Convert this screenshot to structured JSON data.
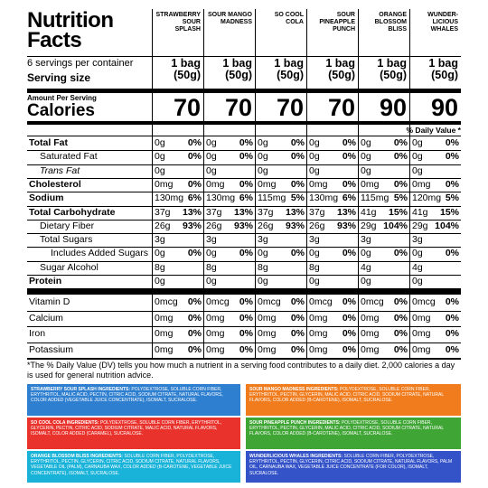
{
  "header": {
    "title": "Nutrition Facts",
    "products": [
      "STRAWBERRY SOUR SPLASH",
      "SOUR MANGO MADNESS",
      "SO COOL COLA",
      "SOUR PINEAPPLE PUNCH",
      "ORANGE BLOSSOM BLISS",
      "WUNDER-LICIOUS WHALES"
    ]
  },
  "servings": {
    "per_container": "6 servings per container",
    "size_label": "Serving size",
    "sizes": [
      "1 bag (50g)",
      "1 bag (50g)",
      "1 bag (50g)",
      "1 bag (50g)",
      "1 bag (50g)",
      "1 bag (50g)"
    ]
  },
  "calories": {
    "amount_label": "Amount Per Serving",
    "label": "Calories",
    "values": [
      "70",
      "70",
      "70",
      "70",
      "90",
      "90"
    ]
  },
  "daily_value_header": "% Daily Value *",
  "nutrients": [
    {
      "name": "Total Fat",
      "cells": [
        {
          "amount": "0g",
          "dv": "0%"
        },
        {
          "amount": "0g",
          "dv": "0%"
        },
        {
          "amount": "0g",
          "dv": "0%"
        },
        {
          "amount": "0g",
          "dv": "0%"
        },
        {
          "amount": "0g",
          "dv": "0%"
        },
        {
          "amount": "0g",
          "dv": "0%"
        }
      ]
    },
    {
      "name": "Saturated Fat",
      "cells": [
        {
          "amount": "0g",
          "dv": "0%"
        },
        {
          "amount": "0g",
          "dv": "0%"
        },
        {
          "amount": "0g",
          "dv": "0%"
        },
        {
          "amount": "0g",
          "dv": "0%"
        },
        {
          "amount": "0g",
          "dv": "0%"
        },
        {
          "amount": "0g",
          "dv": "0%"
        }
      ]
    },
    {
      "name": "Trans Fat",
      "cells": [
        {
          "amount": "0g"
        },
        {
          "amount": "0g"
        },
        {
          "amount": "0g"
        },
        {
          "amount": "0g"
        },
        {
          "amount": "0g"
        },
        {
          "amount": "0g"
        }
      ]
    },
    {
      "name": "Cholesterol",
      "cells": [
        {
          "amount": "0mg",
          "dv": "0%"
        },
        {
          "amount": "0mg",
          "dv": "0%"
        },
        {
          "amount": "0mg",
          "dv": "0%"
        },
        {
          "amount": "0mg",
          "dv": "0%"
        },
        {
          "amount": "0mg",
          "dv": "0%"
        },
        {
          "amount": "0mg",
          "dv": "0%"
        }
      ]
    },
    {
      "name": "Sodium",
      "cells": [
        {
          "amount": "130mg",
          "dv": "6%"
        },
        {
          "amount": "130mg",
          "dv": "6%"
        },
        {
          "amount": "115mg",
          "dv": "5%"
        },
        {
          "amount": "130mg",
          "dv": "6%"
        },
        {
          "amount": "115mg",
          "dv": "5%"
        },
        {
          "amount": "120mg",
          "dv": "5%"
        }
      ]
    },
    {
      "name": "Total Carbohydrate",
      "cells": [
        {
          "amount": "37g",
          "dv": "13%"
        },
        {
          "amount": "37g",
          "dv": "13%"
        },
        {
          "amount": "37g",
          "dv": "13%"
        },
        {
          "amount": "37g",
          "dv": "13%"
        },
        {
          "amount": "41g",
          "dv": "15%"
        },
        {
          "amount": "41g",
          "dv": "15%"
        }
      ]
    },
    {
      "name": "Dietary Fiber",
      "cells": [
        {
          "amount": "26g",
          "dv": "93%"
        },
        {
          "amount": "26g",
          "dv": "93%"
        },
        {
          "amount": "26g",
          "dv": "93%"
        },
        {
          "amount": "26g",
          "dv": "93%"
        },
        {
          "amount": "29g",
          "dv": "104%"
        },
        {
          "amount": "29g",
          "dv": "104%"
        }
      ]
    },
    {
      "name": "Total Sugars",
      "cells": [
        {
          "amount": "3g"
        },
        {
          "amount": "3g"
        },
        {
          "amount": "3g"
        },
        {
          "amount": "3g"
        },
        {
          "amount": "3g"
        },
        {
          "amount": "3g"
        }
      ]
    },
    {
      "name": "Includes Added Sugars",
      "cells": [
        {
          "amount": "0g",
          "dv": "0%"
        },
        {
          "amount": "0g",
          "dv": "0%"
        },
        {
          "amount": "0g",
          "dv": "0%"
        },
        {
          "amount": "0g",
          "dv": "0%"
        },
        {
          "amount": "0g",
          "dv": "0%"
        },
        {
          "amount": "0g",
          "dv": "0%"
        }
      ]
    },
    {
      "name": "Sugar Alcohol",
      "cells": [
        {
          "amount": "8g"
        },
        {
          "amount": "8g"
        },
        {
          "amount": "8g"
        },
        {
          "amount": "8g"
        },
        {
          "amount": "4g"
        },
        {
          "amount": "4g"
        }
      ]
    },
    {
      "name": "Protein",
      "cells": [
        {
          "amount": "0g"
        },
        {
          "amount": "0g"
        },
        {
          "amount": "0g"
        },
        {
          "amount": "0g"
        },
        {
          "amount": "0g"
        },
        {
          "amount": "0g"
        }
      ]
    }
  ],
  "vitamins": [
    {
      "name": "Vitamin D",
      "cells": [
        {
          "amount": "0mcg",
          "dv": "0%"
        },
        {
          "amount": "0mcg",
          "dv": "0%"
        },
        {
          "amount": "0mcg",
          "dv": "0%"
        },
        {
          "amount": "0mcg",
          "dv": "0%"
        },
        {
          "amount": "0mcg",
          "dv": "0%"
        },
        {
          "amount": "0mcg",
          "dv": "0%"
        }
      ]
    },
    {
      "name": "Calcium",
      "cells": [
        {
          "amount": "0mg",
          "dv": "0%"
        },
        {
          "amount": "0mg",
          "dv": "0%"
        },
        {
          "amount": "0mg",
          "dv": "0%"
        },
        {
          "amount": "0mg",
          "dv": "0%"
        },
        {
          "amount": "0mg",
          "dv": "0%"
        },
        {
          "amount": "0mg",
          "dv": "0%"
        }
      ]
    },
    {
      "name": "Iron",
      "cells": [
        {
          "amount": "0mg",
          "dv": "0%"
        },
        {
          "amount": "0mg",
          "dv": "0%"
        },
        {
          "amount": "0mg",
          "dv": "0%"
        },
        {
          "amount": "0mg",
          "dv": "0%"
        },
        {
          "amount": "0mg",
          "dv": "0%"
        },
        {
          "amount": "0mg",
          "dv": "0%"
        }
      ]
    },
    {
      "name": "Potassium",
      "cells": [
        {
          "amount": "0mg",
          "dv": "0%"
        },
        {
          "amount": "0mg",
          "dv": "0%"
        },
        {
          "amount": "0mg",
          "dv": "0%"
        },
        {
          "amount": "0mg",
          "dv": "0%"
        },
        {
          "amount": "0mg",
          "dv": "0%"
        },
        {
          "amount": "0mg",
          "dv": "0%"
        }
      ]
    }
  ],
  "footnote": "*The % Daily Value (DV) tells you how much a nutrient in a serving food contributes to a daily diet. 2,000 calories a day is used for general nutrition advice.",
  "ingredients": [
    {
      "title": "STRAWBERRY SOUR SPLASH INGREDIENTS:",
      "text": "POLYDEXTROSE, SOLUBLE CORN FIBER, ERYTHRITOL, MALIC ACID, PECTIN, CITRIC ACID, SODIUM CITRATE, NATURAL FLAVORS, COLOR ADDED (VEGETABLE JUICE CONCENTRATE), ISOMALT, SUCRALOSE."
    },
    {
      "title": "SOUR MANGO MADNESS INGREDIENTS:",
      "text": "POLYDEXTROSE, SOLUBLE CORN FIBER, ERYTHRITOL, PECTIN, GLYCERIN, MALIC ACID, CITRIC ACID, SODIUM CITRATE, NATURAL FLAVORS, COLOR ADDED (B-CAROTENE), ISOMALT, SUCRALOSE."
    },
    {
      "title": "SO COOL COLA INGREDIENTS:",
      "text": "POLYDEXTROSE, SOLUBLE CORN FIBER, ERYTHRITOL, GLYCERIN, PECTIN, CITRIC ACID, SODIUM CITRATE, MALIC ACID, NATURAL FLAVORS, ISOMALT, COLOR ADDED (CARAMEL), SUCRALOSE."
    },
    {
      "title": "SOUR PINEAPPLE PUNCH INGREDIENTS:",
      "text": "POLYDEXTROSE, SOLUBLE CORN FIBER, ERYTHRITOL, PECTIN, GLYCERIN, MALIC ACID, CITRIC ACID, SODIUM CITRATE, NATURAL FLAVORS, COLOR ADDED (B-CAROTENE), ISOMALT, SUCRALOSE."
    },
    {
      "title": "ORANGE BLOSSOM BLISS INGREDIENTS:",
      "text": "SOLUBLE CORN FIBER, POLYDEXTROSE, ERYTHRITOL, PECTIN, GLYCERIN, CITRIC ACID, SODIUM CITRATE, NATURAL FLAVORS, VEGETABLE OIL (PALM), CARNAUBA WAX, COLOR ADDED (B-CAROTENE, VEGETABLE JUICE CONCENTRATE), ISOMALT, SUCRALOSE."
    },
    {
      "title": "WUNDERLICIOUS WHALES INGREDIENTS:",
      "text": "SOLUBLE CORN FIBER, POLYDEXTROSE, ERYTHRITOL, PECTIN, GLYCERIN, CITRIC ACID, SODIUM CITRATE, NATURAL FLAVORS, PALM OIL, CARNAUBA WAX, VEGETABLE JUICE CONCENTRATE (FOR COLOR), ISOMALT, SUCRALOSE."
    }
  ]
}
